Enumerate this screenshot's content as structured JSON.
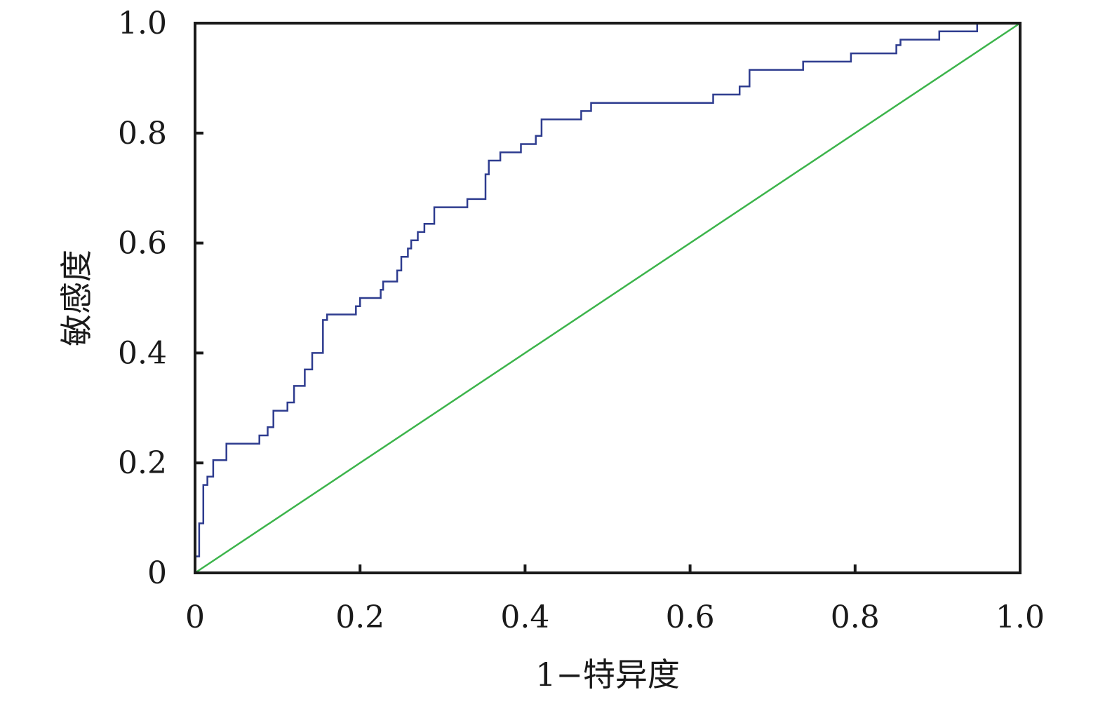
{
  "chart_data": {
    "type": "line",
    "title": "",
    "xlabel": "1−特异度",
    "ylabel": "敏感度",
    "xlim": [
      0,
      1
    ],
    "ylim": [
      0,
      1
    ],
    "xticks": [
      0,
      0.2,
      0.4,
      0.6,
      0.8,
      1.0
    ],
    "xtick_labels": [
      "0",
      "0.2",
      "0.4",
      "0.6",
      "0.8",
      "1.0"
    ],
    "yticks": [
      0,
      0.2,
      0.4,
      0.6,
      0.8,
      1.0
    ],
    "ytick_labels": [
      "0",
      "0.2",
      "0.4",
      "0.6",
      "0.8",
      "1.0"
    ],
    "grid": false,
    "series": [
      {
        "color": "#2e3c8f",
        "step": true,
        "points": [
          [
            0,
            0
          ],
          [
            0,
            0.03
          ],
          [
            0.005,
            0.03
          ],
          [
            0.005,
            0.09
          ],
          [
            0.01,
            0.09
          ],
          [
            0.01,
            0.16
          ],
          [
            0.015,
            0.16
          ],
          [
            0.015,
            0.175
          ],
          [
            0.022,
            0.175
          ],
          [
            0.022,
            0.205
          ],
          [
            0.038,
            0.205
          ],
          [
            0.038,
            0.235
          ],
          [
            0.078,
            0.235
          ],
          [
            0.078,
            0.25
          ],
          [
            0.088,
            0.25
          ],
          [
            0.088,
            0.265
          ],
          [
            0.095,
            0.265
          ],
          [
            0.095,
            0.295
          ],
          [
            0.112,
            0.295
          ],
          [
            0.112,
            0.31
          ],
          [
            0.12,
            0.31
          ],
          [
            0.12,
            0.34
          ],
          [
            0.133,
            0.34
          ],
          [
            0.133,
            0.37
          ],
          [
            0.142,
            0.37
          ],
          [
            0.142,
            0.4
          ],
          [
            0.155,
            0.4
          ],
          [
            0.155,
            0.46
          ],
          [
            0.16,
            0.46
          ],
          [
            0.16,
            0.47
          ],
          [
            0.195,
            0.47
          ],
          [
            0.195,
            0.485
          ],
          [
            0.2,
            0.485
          ],
          [
            0.2,
            0.5
          ],
          [
            0.225,
            0.5
          ],
          [
            0.225,
            0.515
          ],
          [
            0.228,
            0.515
          ],
          [
            0.228,
            0.53
          ],
          [
            0.245,
            0.53
          ],
          [
            0.245,
            0.55
          ],
          [
            0.25,
            0.55
          ],
          [
            0.25,
            0.575
          ],
          [
            0.258,
            0.575
          ],
          [
            0.258,
            0.59
          ],
          [
            0.262,
            0.59
          ],
          [
            0.262,
            0.605
          ],
          [
            0.27,
            0.605
          ],
          [
            0.27,
            0.62
          ],
          [
            0.278,
            0.62
          ],
          [
            0.278,
            0.635
          ],
          [
            0.29,
            0.635
          ],
          [
            0.29,
            0.665
          ],
          [
            0.33,
            0.665
          ],
          [
            0.33,
            0.68
          ],
          [
            0.352,
            0.68
          ],
          [
            0.352,
            0.725
          ],
          [
            0.356,
            0.725
          ],
          [
            0.356,
            0.75
          ],
          [
            0.37,
            0.75
          ],
          [
            0.37,
            0.765
          ],
          [
            0.395,
            0.765
          ],
          [
            0.395,
            0.78
          ],
          [
            0.413,
            0.78
          ],
          [
            0.413,
            0.795
          ],
          [
            0.42,
            0.795
          ],
          [
            0.42,
            0.825
          ],
          [
            0.468,
            0.825
          ],
          [
            0.468,
            0.84
          ],
          [
            0.48,
            0.84
          ],
          [
            0.48,
            0.855
          ],
          [
            0.628,
            0.855
          ],
          [
            0.628,
            0.87
          ],
          [
            0.66,
            0.87
          ],
          [
            0.66,
            0.885
          ],
          [
            0.672,
            0.885
          ],
          [
            0.672,
            0.915
          ],
          [
            0.737,
            0.915
          ],
          [
            0.737,
            0.93
          ],
          [
            0.795,
            0.93
          ],
          [
            0.795,
            0.945
          ],
          [
            0.85,
            0.945
          ],
          [
            0.85,
            0.96
          ],
          [
            0.855,
            0.96
          ],
          [
            0.855,
            0.97
          ],
          [
            0.902,
            0.97
          ],
          [
            0.902,
            0.985
          ],
          [
            0.948,
            0.985
          ],
          [
            0.948,
            1.0
          ],
          [
            1.0,
            1.0
          ]
        ]
      },
      {
        "color": "#3cb44b",
        "step": false,
        "points": [
          [
            0,
            0
          ],
          [
            1,
            1
          ]
        ]
      }
    ]
  }
}
